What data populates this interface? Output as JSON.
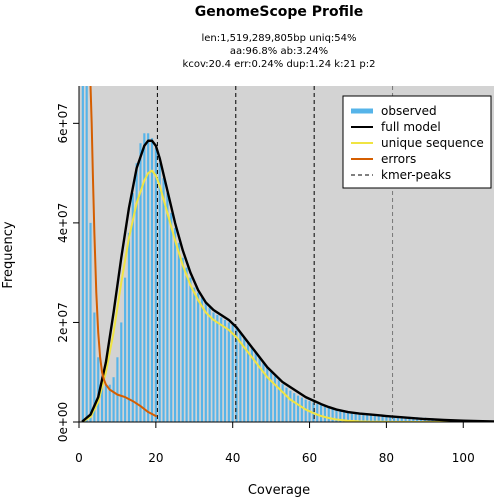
{
  "chart_data": {
    "type": "bar",
    "title": "GenomeScope Profile",
    "subtitle_lines": [
      "len:1,519,289,805bp uniq:54%",
      "aa:96.8% ab:3.24%",
      "kcov:20.4 err:0.24% dup:1.24  k:21 p:2"
    ],
    "xlabel": "Coverage",
    "ylabel": "Frequency",
    "xlim": [
      0,
      108
    ],
    "ylim": [
      0,
      67500000
    ],
    "xticks": [
      0,
      20,
      40,
      60,
      80,
      100
    ],
    "xtick_labels": [
      "0",
      "20",
      "40",
      "60",
      "80",
      "100"
    ],
    "yticks": [
      0,
      20000000,
      40000000,
      60000000
    ],
    "ytick_labels": [
      "0e+00",
      "2e+07",
      "4e+07",
      "6e+07"
    ],
    "grid": false,
    "background_color": "#d3d3d3",
    "legend_position": "top-right",
    "legend": [
      {
        "label": "observed",
        "color": "#56b4e9",
        "style": "thick"
      },
      {
        "label": "full model",
        "color": "#000000",
        "style": "solid"
      },
      {
        "label": "unique sequence",
        "color": "#f0e442",
        "style": "solid"
      },
      {
        "label": "errors",
        "color": "#d55e00",
        "style": "solid"
      },
      {
        "label": "kmer-peaks",
        "color": "#000000",
        "style": "dashed"
      }
    ],
    "kmer_peaks": [
      20.4,
      40.8,
      61.2,
      81.6
    ],
    "observed": {
      "x": [
        1,
        2,
        3,
        4,
        5,
        6,
        7,
        8,
        9,
        10,
        11,
        12,
        13,
        14,
        15,
        16,
        17,
        18,
        19,
        20,
        21,
        22,
        23,
        24,
        25,
        26,
        27,
        28,
        29,
        30,
        31,
        32,
        33,
        34,
        35,
        36,
        37,
        38,
        39,
        40,
        41,
        42,
        43,
        44,
        45,
        46,
        47,
        48,
        49,
        50,
        51,
        52,
        53,
        54,
        55,
        56,
        57,
        58,
        59,
        60,
        61,
        62,
        63,
        64,
        65,
        66,
        67,
        68,
        69,
        70,
        71,
        72,
        73,
        74,
        75,
        76,
        77,
        78,
        79,
        80,
        81,
        82,
        83,
        84,
        85,
        86,
        87,
        88,
        89,
        90,
        91,
        92,
        93,
        94,
        95,
        96,
        97,
        98,
        99,
        100,
        101,
        102,
        103,
        104,
        105,
        106,
        107
      ],
      "y": [
        67500000,
        67500000,
        40000000,
        22000000,
        13000000,
        9000000,
        7500000,
        7500000,
        9000000,
        13000000,
        20000000,
        29000000,
        38000000,
        46000000,
        52000000,
        56000000,
        58000000,
        58000000,
        57000000,
        55000000,
        52000000,
        49000000,
        46000000,
        42000000,
        39000000,
        36000000,
        33000000,
        31000000,
        29000000,
        27000000,
        26000000,
        25000000,
        24000000,
        23000000,
        22000000,
        21500000,
        21000000,
        20500000,
        20000000,
        19500000,
        19000000,
        18000000,
        17000000,
        16000000,
        15000000,
        14000000,
        13000000,
        12000000,
        11000000,
        10000000,
        9200000,
        8400000,
        7600000,
        6900000,
        6300000,
        5800000,
        5300000,
        4900000,
        4500000,
        4200000,
        3900000,
        3600000,
        3400000,
        3200000,
        3000000,
        2800000,
        2600000,
        2500000,
        2400000,
        2200000,
        2100000,
        2000000,
        1900000,
        1800000,
        1700000,
        1600000,
        1500000,
        1450000,
        1400000,
        1350000,
        1300000,
        1250000,
        1200000,
        1150000,
        1100000,
        1050000,
        1000000,
        950000,
        900000,
        850000,
        800000,
        750000,
        700000,
        650000,
        600000,
        550000,
        500000,
        470000,
        440000,
        410000,
        380000,
        350000,
        320000,
        300000,
        280000,
        260000,
        240000
      ]
    },
    "series": [
      {
        "name": "full model",
        "color": "#000000",
        "x": [
          1,
          3,
          5,
          7,
          9,
          11,
          13,
          15,
          17,
          18,
          19,
          20,
          21,
          23,
          25,
          27,
          29,
          31,
          33,
          35,
          37,
          39,
          41,
          43,
          45,
          47,
          49,
          51,
          53,
          55,
          57,
          59,
          61,
          63,
          65,
          67,
          70,
          73,
          76,
          80,
          85,
          90,
          95,
          100,
          105,
          108
        ],
        "y": [
          200000,
          1500000,
          5000000,
          12000000,
          22000000,
          33000000,
          43000000,
          51000000,
          55500000,
          56500000,
          56500000,
          55500000,
          53000000,
          46500000,
          40000000,
          34500000,
          30000000,
          26500000,
          24000000,
          22500000,
          21500000,
          20500000,
          19000000,
          17000000,
          15000000,
          13000000,
          11000000,
          9500000,
          8000000,
          7000000,
          6000000,
          5000000,
          4300000,
          3600000,
          3000000,
          2500000,
          2000000,
          1700000,
          1500000,
          1200000,
          900000,
          600000,
          400000,
          250000,
          150000,
          100000
        ]
      },
      {
        "name": "unique sequence",
        "color": "#f0e442",
        "x": [
          1,
          3,
          5,
          7,
          9,
          11,
          13,
          15,
          17,
          18,
          19,
          20,
          21,
          23,
          25,
          27,
          29,
          31,
          33,
          35,
          37,
          39,
          41,
          43,
          45,
          47,
          49,
          51,
          53,
          55,
          57,
          59,
          61,
          63,
          65,
          67,
          70,
          73,
          76,
          80,
          85,
          90,
          100,
          108
        ],
        "y": [
          100000,
          1000000,
          4000000,
          10000000,
          18000000,
          28000000,
          37000000,
          44000000,
          48500000,
          50000000,
          50500000,
          49500000,
          47500000,
          42000000,
          36500000,
          31500000,
          27500000,
          24500000,
          22000000,
          20500000,
          19500000,
          18500000,
          17000000,
          15000000,
          13000000,
          11000000,
          9000000,
          7500000,
          6000000,
          4500000,
          3500000,
          2500000,
          1800000,
          1200000,
          800000,
          500000,
          250000,
          120000,
          60000,
          30000,
          10000,
          5000,
          0,
          0
        ]
      },
      {
        "name": "errors",
        "color": "#d55e00",
        "x": [
          3,
          3.3,
          3.6,
          4,
          4.5,
          5,
          5.5,
          6,
          6.5,
          7,
          8,
          9,
          10,
          12,
          14,
          16,
          18,
          20
        ],
        "y": [
          67500000,
          60000000,
          50000000,
          38000000,
          26000000,
          18000000,
          13000000,
          10000000,
          8500000,
          7500000,
          6500000,
          6000000,
          5500000,
          5000000,
          4200000,
          3200000,
          2000000,
          1200000
        ]
      }
    ]
  }
}
